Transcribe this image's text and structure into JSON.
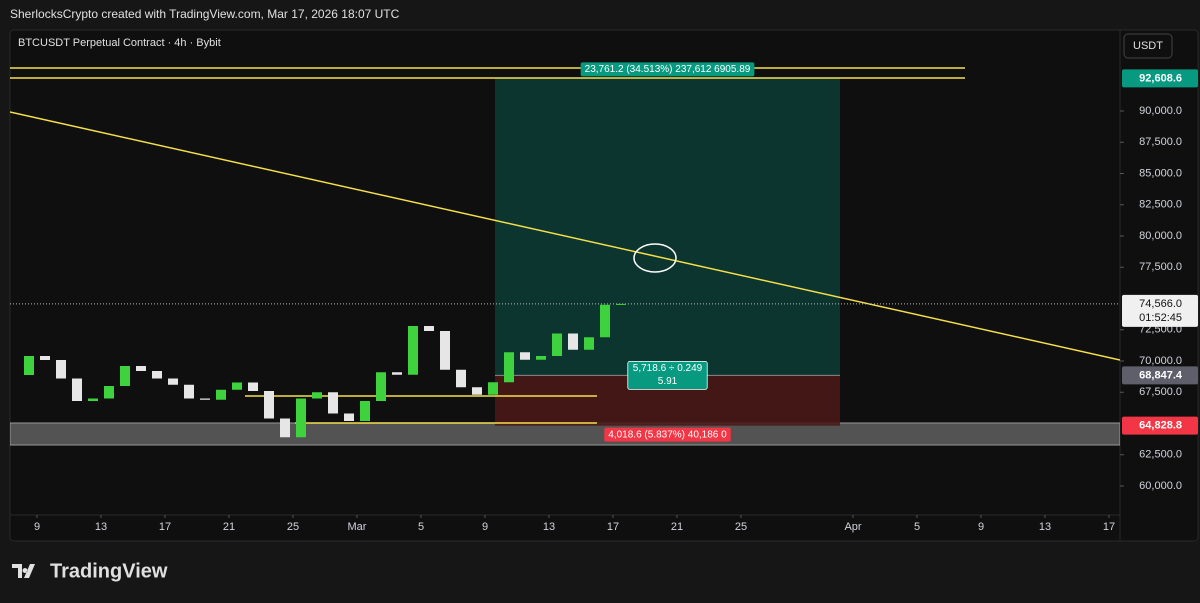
{
  "header": {
    "title": "SherlocksCrypto created with TradingView.com, Mar 17, 2026 18:07 UTC"
  },
  "chart_data": {
    "type": "candlestick",
    "symbol": "BTCUSDT Perpetual Contract · 4h · Bybit",
    "currency": "USDT",
    "x": [
      38.5,
      39.5,
      40.5,
      41.5,
      42.5,
      43.5,
      44.5,
      45.5,
      46.5,
      47.5,
      48.5,
      49.5,
      50.5,
      51.5,
      52.5,
      53.5,
      54.5,
      55.5,
      56.5,
      57.5,
      58.5,
      59.5,
      60.5,
      61.5,
      62.5,
      63.5,
      64.5,
      65.5,
      66.5,
      67.5,
      68.5,
      69.5,
      70.5,
      71.5,
      72.5,
      73.5,
      74.5,
      75.5,
      76.5
    ],
    "values": [
      68880,
      70400,
      70080,
      68600,
      66800,
      67000,
      68000,
      69600,
      69200,
      68600,
      68100,
      67000,
      66900,
      67700,
      68280,
      67600,
      65400,
      63900,
      67000,
      67500,
      65800,
      65200,
      66800,
      69100,
      68900,
      72800,
      72400,
      69300,
      67900,
      67300,
      68300,
      70700,
      70100,
      70400,
      72200,
      70900,
      71900,
      74500,
      74566
    ],
    "colors": {
      "up": "#3fd23f",
      "down": "#e6e6e6"
    },
    "xlim": [
      38.3125,
      107.6875
    ],
    "ylim": [
      57680,
      96480
    ],
    "xticks": [
      {
        "value": 40,
        "label": "9"
      },
      {
        "value": 44,
        "label": "13"
      },
      {
        "value": 48,
        "label": "17"
      },
      {
        "value": 52,
        "label": "21"
      },
      {
        "value": 56,
        "label": "25"
      },
      {
        "value": 60,
        "label": "Mar"
      },
      {
        "value": 64,
        "label": "5"
      },
      {
        "value": 68,
        "label": "9"
      },
      {
        "value": 72,
        "label": "13"
      },
      {
        "value": 76,
        "label": "17"
      },
      {
        "value": 80,
        "label": "21"
      },
      {
        "value": 84,
        "label": "25"
      },
      {
        "value": 91,
        "label": "Apr"
      },
      {
        "value": 95,
        "label": "5"
      },
      {
        "value": 99,
        "label": "9"
      },
      {
        "value": 103,
        "label": "13"
      },
      {
        "value": 107,
        "label": "17"
      }
    ],
    "yticks": [
      {
        "value": 60000,
        "label": "60,000.0"
      },
      {
        "value": 62500,
        "label": "62,500.0"
      },
      {
        "value": 67500,
        "label": "67,500.0"
      },
      {
        "value": 70000,
        "label": "70,000.0"
      },
      {
        "value": 72500,
        "label": "72,500.0"
      },
      {
        "value": 77500,
        "label": "77,500.0"
      },
      {
        "value": 80000,
        "label": "80,000.0"
      },
      {
        "value": 82500,
        "label": "82,500.0"
      },
      {
        "value": 85000,
        "label": "85,000.0"
      },
      {
        "value": 87500,
        "label": "87,500.0"
      },
      {
        "value": 90000,
        "label": "90,000.0"
      }
    ],
    "last_price": {
      "value": 74566,
      "label": "74,566.0",
      "countdown": "01:52:45"
    },
    "price_tags": [
      {
        "value": 92608.6,
        "label": "92,608.6",
        "color": "#089981"
      },
      {
        "value": 68847.4,
        "label": "68,847.4",
        "color": "#5d606b"
      },
      {
        "value": 64828.8,
        "label": "64,828.8",
        "color": "#f23645"
      }
    ],
    "position": {
      "x": [
        68.625,
        90.1875
      ],
      "target": 92608.6,
      "entry": 68847.4,
      "stop": 64828.8,
      "target_label": "23,761.2 (34.513%) 237,612 6905.89",
      "ratio_label": [
        "5,718.6 ÷ 0.249",
        "5.91"
      ],
      "stop_label": "4,018.6 (5.837%) 40,186 0"
    },
    "trendline": {
      "x": [
        38.3125,
        107.6875
      ],
      "y": [
        89920,
        70080
      ],
      "color": "#f5e04a"
    },
    "levels": [
      {
        "x": [
          38.3125,
          98
        ],
        "y": 93440
      },
      {
        "x": [
          38.3125,
          98
        ],
        "y": 92640
      },
      {
        "x": [
          53,
          75
        ],
        "y": 67200
      },
      {
        "x": [
          56.125,
          75
        ],
        "y": 65040
      }
    ],
    "zone": {
      "x": [
        38.3125,
        107.6875
      ],
      "y": [
        63280,
        65040
      ]
    }
  },
  "footer": {
    "brand": "TradingView"
  }
}
